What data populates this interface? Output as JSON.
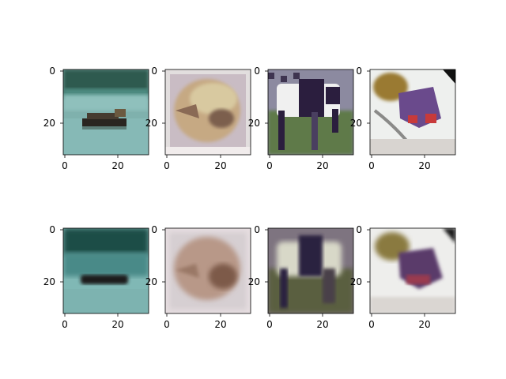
{
  "figure": {
    "layout": "2 rows x 4 columns of image subplots",
    "background": "#ffffff"
  },
  "chart_data": [
    {
      "type": "heatmap",
      "row": 1,
      "col": 1,
      "image_description": "boat on water",
      "xlim": [
        0,
        32
      ],
      "ylim": [
        32,
        0
      ],
      "xticks": [
        "0",
        "20"
      ],
      "yticks": [
        "0",
        "20"
      ],
      "palette": [
        "#1f4d46",
        "#3a7a78",
        "#7fb1ad",
        "#2a2520"
      ]
    },
    {
      "type": "heatmap",
      "row": 1,
      "col": 2,
      "image_description": "bird head close-up",
      "xlim": [
        0,
        32
      ],
      "ylim": [
        32,
        0
      ],
      "xticks": [
        "0",
        "20"
      ],
      "yticks": [
        "0",
        "20"
      ],
      "palette": [
        "#c9bcc4",
        "#c6a983",
        "#8a6a55",
        "#e8e0d8"
      ]
    },
    {
      "type": "heatmap",
      "row": 1,
      "col": 3,
      "image_description": "black and white cow on grass",
      "xlim": [
        0,
        32
      ],
      "ylim": [
        32,
        0
      ],
      "xticks": [
        "0",
        "20"
      ],
      "yticks": [
        "0",
        "20"
      ],
      "palette": [
        "#5e7a48",
        "#2b1e3e",
        "#f0f0f0",
        "#8c8aa0"
      ]
    },
    {
      "type": "heatmap",
      "row": 1,
      "col": 4,
      "image_description": "toy vehicle",
      "xlim": [
        0,
        32
      ],
      "ylim": [
        32,
        0
      ],
      "xticks": [
        "0",
        "20"
      ],
      "yticks": [
        "0",
        "20"
      ],
      "palette": [
        "#eef0ee",
        "#6a4a8c",
        "#c83a3a",
        "#9a7a30"
      ]
    },
    {
      "type": "heatmap",
      "row": 2,
      "col": 1,
      "image_description": "reconstructed boat on water",
      "xlim": [
        0,
        32
      ],
      "ylim": [
        32,
        0
      ],
      "xticks": [
        "0",
        "20"
      ],
      "yticks": [
        "0",
        "20"
      ],
      "palette": [
        "#1f4d46",
        "#4a8a88",
        "#80b8b5",
        "#1a1a1a"
      ]
    },
    {
      "type": "heatmap",
      "row": 2,
      "col": 2,
      "image_description": "reconstructed bird head",
      "xlim": [
        0,
        32
      ],
      "ylim": [
        32,
        0
      ],
      "xticks": [
        "0",
        "20"
      ],
      "yticks": [
        "0",
        "20"
      ],
      "palette": [
        "#d6cfd2",
        "#b89888",
        "#7d5a4a",
        "#e6dde0"
      ]
    },
    {
      "type": "heatmap",
      "row": 2,
      "col": 3,
      "image_description": "reconstructed cow",
      "xlim": [
        0,
        32
      ],
      "ylim": [
        32,
        0
      ],
      "xticks": [
        "0",
        "20"
      ],
      "yticks": [
        "0",
        "20"
      ],
      "palette": [
        "#5a5e40",
        "#2c2340",
        "#d8d8c8",
        "#7e7480"
      ]
    },
    {
      "type": "heatmap",
      "row": 2,
      "col": 4,
      "image_description": "reconstructed toy vehicle",
      "xlim": [
        0,
        32
      ],
      "ylim": [
        32,
        0
      ],
      "xticks": [
        "0",
        "20"
      ],
      "yticks": [
        "0",
        "20"
      ],
      "palette": [
        "#eeeeec",
        "#5a3a6a",
        "#9a3a50",
        "#8a7a40"
      ]
    }
  ]
}
